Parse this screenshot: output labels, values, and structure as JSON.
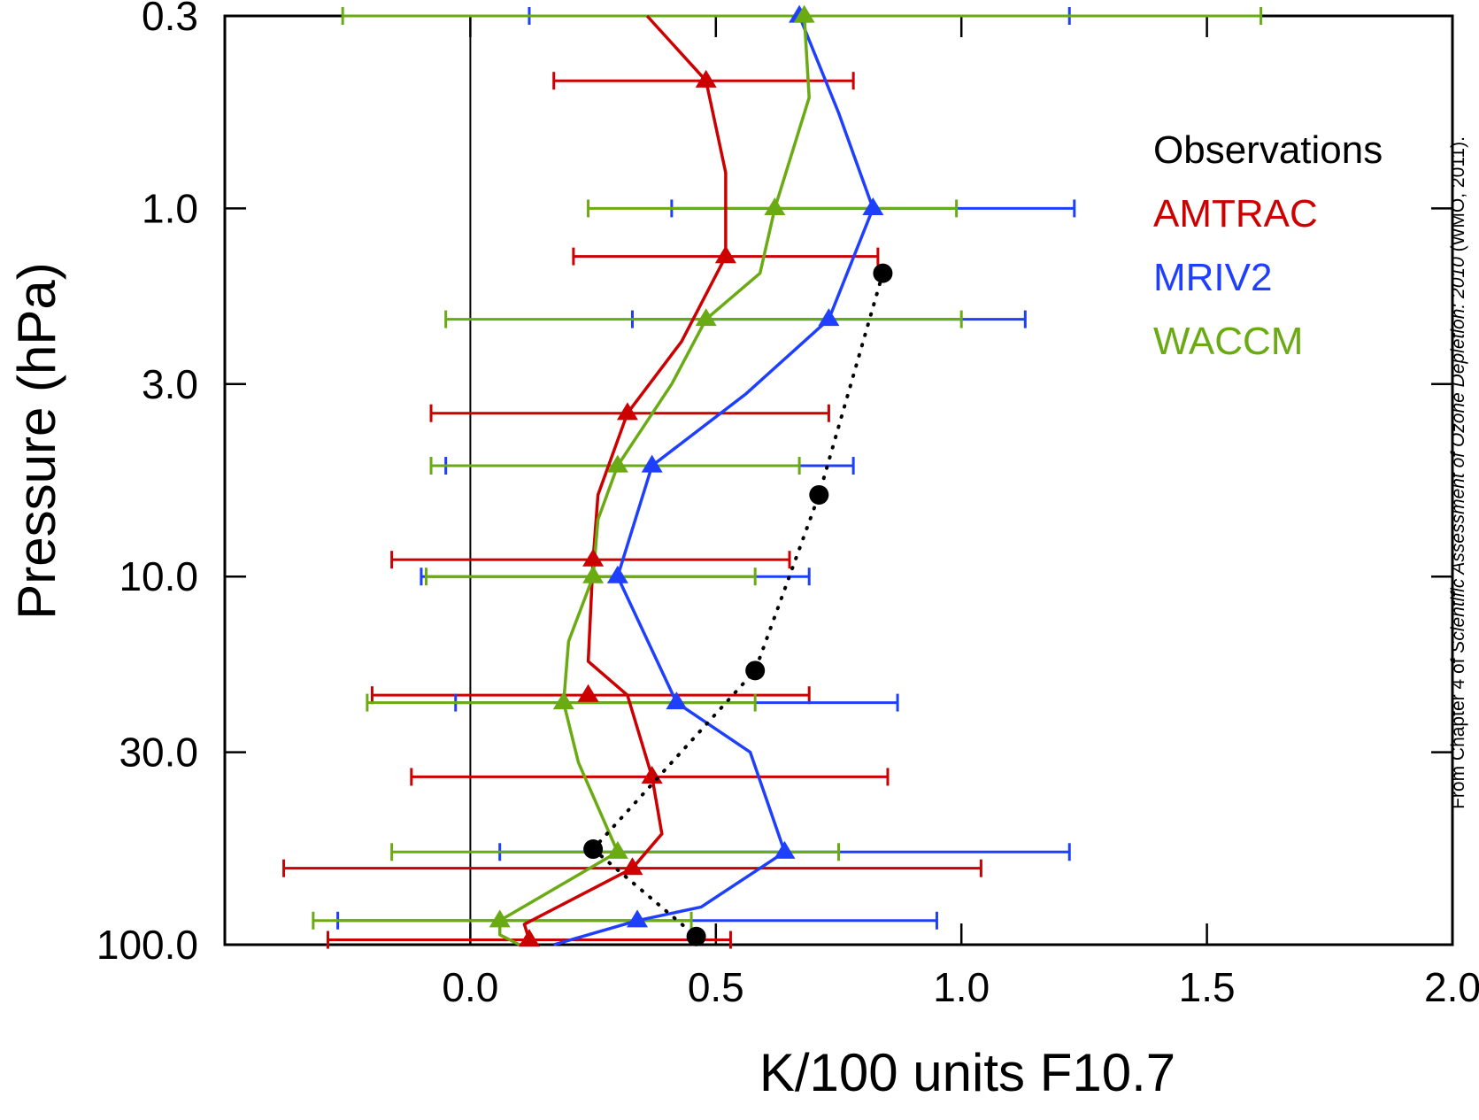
{
  "chart_data": {
    "type": "line",
    "xlabel": "K/100 units F10.7",
    "ylabel": "Pressure (hPa)",
    "xlim": [
      -0.5,
      2.0
    ],
    "ylim": [
      100.0,
      0.3
    ],
    "y_scale": "log",
    "x_ticks": [
      0.0,
      0.5,
      1.0,
      1.5,
      2.0
    ],
    "x_tick_labels": [
      "0.0",
      "0.5",
      "1.0",
      "1.5",
      "2.0"
    ],
    "y_ticks": [
      0.3,
      1.0,
      3.0,
      10.0,
      30.0,
      100.0
    ],
    "y_tick_labels": [
      "0.3",
      "1.0",
      "3.0",
      "10.0",
      "30.0",
      "100.0"
    ],
    "zero_line": 0.0,
    "legend_position": "top-right",
    "credit": {
      "prefix": "From Chapter 4 of ",
      "italic": "Scientific Assessment of Ozone Depletion: 2010",
      "suffix": " (WMO, 2011)."
    },
    "series": [
      {
        "name": "Observations",
        "color": "#000000",
        "marker": "circle",
        "line": "dotted",
        "x": [
          0.84,
          0.71,
          0.58,
          0.25,
          0.46
        ],
        "y": [
          1.5,
          6.0,
          18.0,
          55.0,
          95.0
        ]
      },
      {
        "name": "AMTRAC",
        "color": "#cc0000",
        "marker": "triangle",
        "line": "solid",
        "x": [
          0.36,
          0.48,
          0.52,
          0.52,
          0.43,
          0.32,
          0.26,
          0.25,
          0.24,
          0.32,
          0.37,
          0.39,
          0.33,
          0.11,
          0.12,
          0.13
        ],
        "y": [
          0.3,
          0.45,
          0.8,
          1.35,
          2.3,
          3.6,
          6.0,
          9.0,
          17.0,
          21.0,
          35.0,
          50.0,
          62.0,
          88.0,
          97.0,
          100.0
        ],
        "marker_x": [
          0.48,
          0.52,
          0.32,
          0.25,
          0.24,
          0.37,
          0.33,
          0.12
        ],
        "marker_y": [
          0.45,
          1.35,
          3.6,
          9.0,
          21.0,
          35.0,
          62.0,
          97.0
        ],
        "err_low": [
          0.17,
          0.21,
          -0.08,
          -0.16,
          -0.2,
          -0.12,
          -0.38,
          -0.29
        ],
        "err_high": [
          0.78,
          0.83,
          0.73,
          0.65,
          0.69,
          0.85,
          1.04,
          0.53
        ]
      },
      {
        "name": "MRIV2",
        "color": "#1f3fff",
        "marker": "triangle",
        "line": "solid",
        "x": [
          0.67,
          0.75,
          0.82,
          0.73,
          0.56,
          0.37,
          0.3,
          0.42,
          0.57,
          0.64,
          0.47,
          0.34,
          0.17
        ],
        "y": [
          0.3,
          0.55,
          1.0,
          2.0,
          3.2,
          5.0,
          10.0,
          22.0,
          30.0,
          56.0,
          79.0,
          86.0,
          100.0
        ],
        "marker_x": [
          0.67,
          0.82,
          0.73,
          0.37,
          0.3,
          0.42,
          0.64,
          0.34
        ],
        "marker_y": [
          0.3,
          1.0,
          2.0,
          5.0,
          10.0,
          22.0,
          56.0,
          86.0
        ],
        "err_low": [
          0.12,
          0.41,
          0.33,
          -0.05,
          -0.1,
          -0.03,
          0.06,
          -0.27
        ],
        "err_high": [
          1.22,
          1.23,
          1.13,
          0.78,
          0.69,
          0.87,
          1.22,
          0.95
        ]
      },
      {
        "name": "WACCM",
        "color": "#6aaa13",
        "marker": "triangle",
        "line": "solid",
        "x": [
          0.68,
          0.69,
          0.62,
          0.59,
          0.48,
          0.41,
          0.3,
          0.26,
          0.25,
          0.2,
          0.19,
          0.22,
          0.3,
          0.06,
          0.06,
          0.1
        ],
        "y": [
          0.3,
          0.5,
          1.0,
          1.5,
          2.0,
          3.0,
          5.0,
          7.0,
          10.0,
          15.0,
          22.0,
          32.0,
          56.0,
          86.0,
          94.0,
          100.0
        ],
        "marker_x": [
          0.68,
          0.62,
          0.48,
          0.3,
          0.25,
          0.19,
          0.3,
          0.06
        ],
        "marker_y": [
          0.3,
          1.0,
          2.0,
          5.0,
          10.0,
          22.0,
          56.0,
          86.0
        ],
        "err_low": [
          -0.26,
          0.24,
          -0.05,
          -0.08,
          -0.09,
          -0.21,
          -0.16,
          -0.32
        ],
        "err_high": [
          1.61,
          0.99,
          1.0,
          0.67,
          0.58,
          0.58,
          0.75,
          0.45
        ]
      }
    ]
  }
}
